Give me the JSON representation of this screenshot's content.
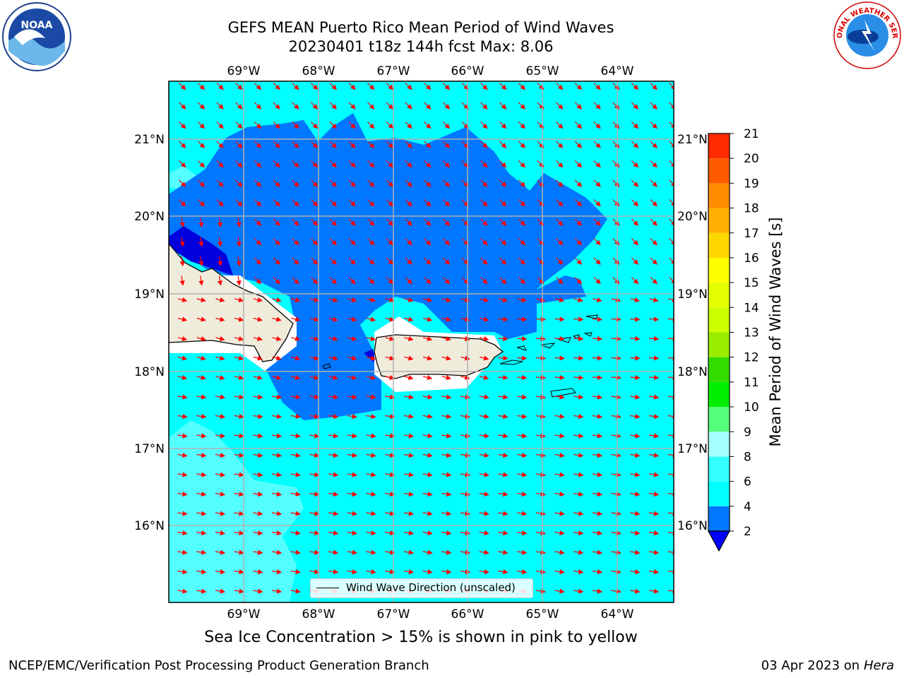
{
  "title_line1": "GEFS MEAN Puerto Rico Mean Period of Wind Waves",
  "title_line2": "20230401 t18z 144h fcst   Max: 8.06",
  "lon_labels": [
    "69°W",
    "68°W",
    "67°W",
    "66°W",
    "65°W",
    "64°W"
  ],
  "lat_labels": [
    "21°N",
    "20°N",
    "19°N",
    "18°N",
    "17°N",
    "16°N"
  ],
  "legend_label": "Wind Wave Direction (unscaled)",
  "colorbar": {
    "title": "Mean Period of Wind Waves [s]",
    "ticks": [
      "2",
      "4",
      "6",
      "8",
      "9",
      "10",
      "11",
      "12",
      "13",
      "14",
      "15",
      "16",
      "17",
      "18",
      "19",
      "20",
      "21"
    ],
    "colors": [
      "#0077ff",
      "#00ffff",
      "#33ffff",
      "#a6ffff",
      "#54ff7a",
      "#00ee00",
      "#33dd00",
      "#99ee00",
      "#ccff00",
      "#e6ff00",
      "#ffff00",
      "#ffd700",
      "#ffb000",
      "#ff8c00",
      "#ff5a00",
      "#ff2a00",
      "#ff0000"
    ],
    "extend_color": "#0000ff"
  },
  "sea_ice_note": "Sea Ice Concentration > 15% is shown in pink to yellow",
  "footer_left": "NCEP/EMC/Verification Post Processing Product Generation Branch",
  "footer_date": "03 Apr 2023 on ",
  "footer_host": "Hera",
  "logos": {
    "left": "NOAA",
    "right": "NATIONAL WEATHER SERVICE"
  },
  "colors": {
    "ocean_light": "#00ffff",
    "ocean_mid": "#0077ff",
    "ocean_deep": "#0000dd",
    "land": "#efecdc",
    "arrows": "#ff0000"
  }
}
